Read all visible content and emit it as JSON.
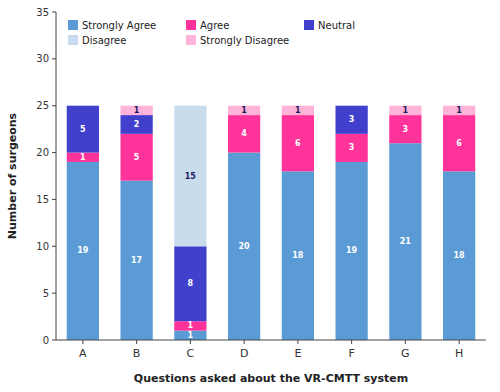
{
  "chart_data": {
    "type": "bar",
    "stacked": true,
    "xlabel": "Questions asked about the VR-CMTT system",
    "ylabel": "Number of surgeons",
    "categories": [
      "A",
      "B",
      "C",
      "D",
      "E",
      "F",
      "G",
      "H"
    ],
    "series": [
      {
        "name": "Strongly Agree",
        "color": "#5B9BD5",
        "values": [
          19,
          17,
          1,
          20,
          18,
          19,
          21,
          18
        ]
      },
      {
        "name": "Agree",
        "color": "#FF3399",
        "values": [
          1,
          5,
          1,
          4,
          6,
          3,
          3,
          6
        ]
      },
      {
        "name": "Neutral",
        "color": "#4040CC",
        "values": [
          5,
          2,
          8,
          0,
          0,
          3,
          0,
          0
        ]
      },
      {
        "name": "Disagree",
        "color": "#C8DCEE",
        "values": [
          0,
          0,
          15,
          0,
          0,
          0,
          0,
          0
        ]
      },
      {
        "name": "Strongly Disagree",
        "color": "#FFB3D9",
        "values": [
          0,
          1,
          0,
          1,
          1,
          0,
          1,
          1
        ]
      }
    ],
    "ylim": [
      0,
      35
    ],
    "yticks": [
      0,
      5,
      10,
      15,
      20,
      25,
      30,
      35
    ],
    "grid": false,
    "legend": "upper left",
    "data_labels": true
  }
}
